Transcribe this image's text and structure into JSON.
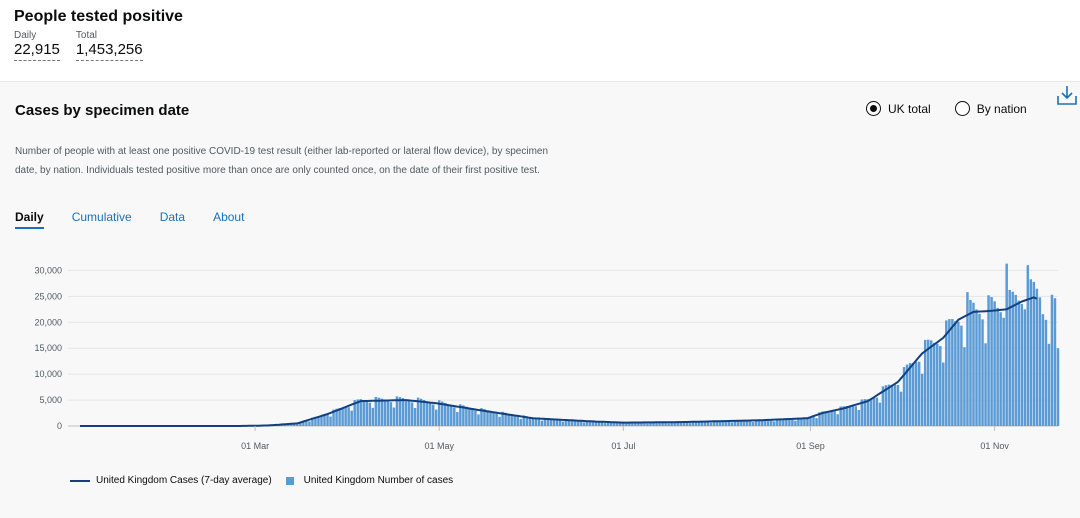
{
  "header": {
    "title": "People tested positive",
    "stats": [
      {
        "label": "Daily",
        "value": "22,915"
      },
      {
        "label": "Total",
        "value": "1,453,256"
      }
    ]
  },
  "card": {
    "title": "Cases by specimen date",
    "radios": [
      {
        "label": "UK total",
        "selected": true
      },
      {
        "label": "By nation",
        "selected": false
      }
    ],
    "description": "Number of people with at least one positive COVID-19 test result (either lab-reported or lateral flow device), by specimen date, by nation. Individuals tested positive more than once are only counted once, on the date of their first positive test.",
    "tabs": [
      {
        "label": "Daily",
        "active": true
      },
      {
        "label": "Cumulative",
        "active": false
      },
      {
        "label": "Data",
        "active": false
      },
      {
        "label": "About",
        "active": false
      }
    ],
    "download_icon": "download-icon"
  },
  "chart_data": {
    "type": "bar",
    "x_range": [
      "2020-01-03",
      "2020-11-22"
    ],
    "x_ticks": [
      "01 Mar",
      "01 May",
      "01 Jul",
      "01 Sep",
      "01 Nov"
    ],
    "y_ticks": [
      "0",
      "5,000",
      "10,000",
      "15,000",
      "20,000",
      "25,000",
      "30,000"
    ],
    "ylim": [
      0,
      32000
    ],
    "grid": "horizontal",
    "legend_position": "bottom-left",
    "colors": {
      "line": "#12407f",
      "bars": "#5a9bd5"
    },
    "series": [
      {
        "name": "United Kingdom Cases (7-day average)",
        "kind": "line"
      },
      {
        "name": "United Kingdom Number of cases",
        "kind": "bar"
      }
    ],
    "line_keypoints": [
      [
        "2020-01-03",
        0
      ],
      [
        "2020-02-25",
        0
      ],
      [
        "2020-03-05",
        100
      ],
      [
        "2020-03-15",
        500
      ],
      [
        "2020-03-25",
        2300
      ],
      [
        "2020-04-05",
        4800
      ],
      [
        "2020-04-20",
        5000
      ],
      [
        "2020-04-30",
        4400
      ],
      [
        "2020-05-15",
        3000
      ],
      [
        "2020-06-01",
        1500
      ],
      [
        "2020-06-20",
        900
      ],
      [
        "2020-07-01",
        650
      ],
      [
        "2020-07-20",
        750
      ],
      [
        "2020-08-15",
        1100
      ],
      [
        "2020-08-31",
        1500
      ],
      [
        "2020-09-05",
        2500
      ],
      [
        "2020-09-12",
        3400
      ],
      [
        "2020-09-20",
        4800
      ],
      [
        "2020-09-30",
        8500
      ],
      [
        "2020-10-08",
        14000
      ],
      [
        "2020-10-15",
        17000
      ],
      [
        "2020-10-20",
        20500
      ],
      [
        "2020-10-25",
        22000
      ],
      [
        "2020-10-31",
        22200
      ],
      [
        "2020-11-05",
        22500
      ],
      [
        "2020-11-10",
        24000
      ],
      [
        "2020-11-14",
        24800
      ],
      [
        "2020-11-15",
        24500
      ]
    ],
    "bar_peaks": [
      [
        "2020-10-23",
        25800
      ],
      [
        "2020-10-30",
        25200
      ],
      [
        "2020-11-05",
        31300
      ],
      [
        "2020-11-12",
        31000
      ],
      [
        "2020-11-16",
        24800
      ],
      [
        "2020-11-22",
        15000
      ]
    ]
  },
  "legend": {
    "line_label": "United Kingdom Cases (7-day average)",
    "bar_label": "United Kingdom Number of cases"
  }
}
